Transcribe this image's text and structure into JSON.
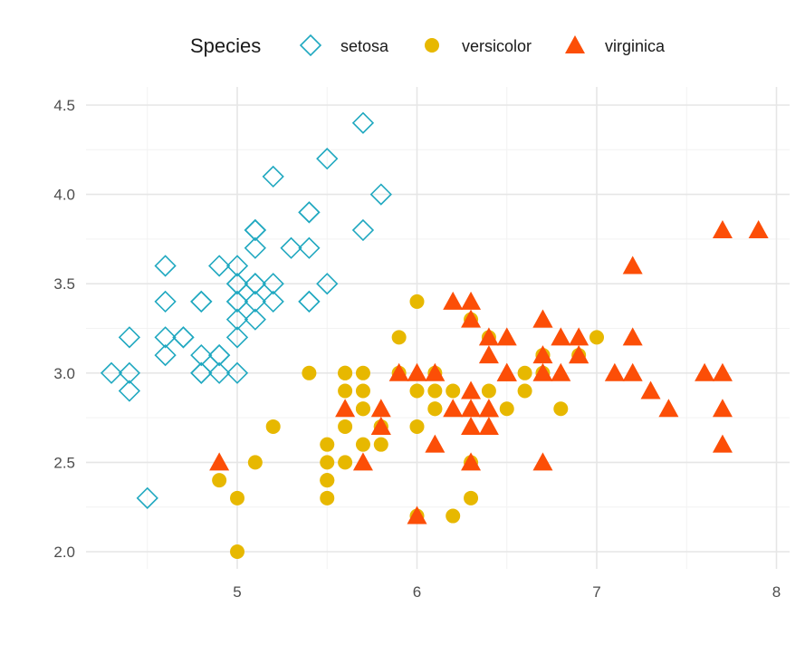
{
  "chart_data": {
    "type": "scatter",
    "title": "",
    "xlabel": "",
    "ylabel": "",
    "xlim": [
      4.3,
      8.0
    ],
    "ylim": [
      2.0,
      4.5
    ],
    "x_ticks": [
      5,
      6,
      7,
      8
    ],
    "y_ticks": [
      2.0,
      2.5,
      3.0,
      3.5,
      4.0,
      4.5
    ],
    "x_tick_labels": [
      "5",
      "6",
      "7",
      "8"
    ],
    "y_tick_labels": [
      "2.0",
      "2.5",
      "3.0",
      "3.5",
      "4.0",
      "4.5"
    ],
    "grid": true,
    "legend": {
      "title": "Species",
      "position": "top",
      "entries": [
        "setosa",
        "versicolor",
        "virginica"
      ]
    },
    "series": [
      {
        "name": "setosa",
        "marker": "diamond-open",
        "color": "#1FA8C0",
        "x": [
          5.1,
          4.9,
          4.7,
          4.6,
          5.0,
          5.4,
          4.6,
          5.0,
          4.4,
          4.9,
          5.4,
          4.8,
          4.8,
          4.3,
          5.8,
          5.7,
          5.4,
          5.1,
          5.7,
          5.1,
          5.4,
          5.1,
          4.6,
          5.1,
          4.8,
          5.0,
          5.0,
          5.2,
          5.2,
          4.7,
          4.8,
          5.4,
          5.2,
          5.5,
          4.9,
          5.0,
          5.5,
          4.9,
          4.4,
          5.1,
          5.0,
          4.5,
          4.4,
          5.0,
          5.1,
          4.8,
          5.1,
          4.6,
          5.3,
          5.0
        ],
        "y": [
          3.5,
          3.0,
          3.2,
          3.1,
          3.6,
          3.9,
          3.4,
          3.4,
          2.9,
          3.1,
          3.7,
          3.4,
          3.0,
          3.0,
          4.0,
          4.4,
          3.9,
          3.5,
          3.8,
          3.8,
          3.4,
          3.7,
          3.6,
          3.3,
          3.4,
          3.0,
          3.4,
          3.5,
          3.4,
          3.2,
          3.1,
          3.4,
          4.1,
          4.2,
          3.1,
          3.2,
          3.5,
          3.6,
          3.0,
          3.4,
          3.5,
          2.3,
          3.2,
          3.5,
          3.8,
          3.0,
          3.8,
          3.2,
          3.7,
          3.3
        ]
      },
      {
        "name": "versicolor",
        "marker": "circle",
        "color": "#E7B800",
        "x": [
          7.0,
          6.4,
          6.9,
          5.5,
          6.5,
          5.7,
          6.3,
          4.9,
          6.6,
          5.2,
          5.0,
          5.9,
          6.0,
          6.1,
          5.6,
          6.7,
          5.6,
          5.8,
          6.2,
          5.6,
          5.9,
          6.1,
          6.3,
          6.1,
          6.4,
          6.6,
          6.8,
          6.7,
          6.0,
          5.7,
          5.5,
          5.5,
          5.8,
          6.0,
          5.4,
          6.0,
          6.7,
          6.3,
          5.6,
          5.5,
          5.5,
          6.1,
          5.8,
          5.0,
          5.6,
          5.7,
          5.7,
          6.2,
          5.1,
          5.7
        ],
        "y": [
          3.2,
          3.2,
          3.1,
          2.3,
          2.8,
          2.8,
          3.3,
          2.4,
          2.9,
          2.7,
          2.0,
          3.0,
          2.2,
          2.9,
          2.9,
          3.1,
          3.0,
          2.7,
          2.2,
          2.5,
          3.2,
          2.8,
          2.5,
          2.8,
          2.9,
          3.0,
          2.8,
          3.0,
          2.9,
          2.6,
          2.4,
          2.4,
          2.7,
          2.7,
          3.0,
          3.4,
          3.1,
          2.3,
          3.0,
          2.5,
          2.6,
          3.0,
          2.6,
          2.3,
          2.7,
          3.0,
          2.9,
          2.9,
          2.5,
          2.8
        ]
      },
      {
        "name": "virginica",
        "marker": "triangle",
        "color": "#FC4E07",
        "x": [
          6.3,
          5.8,
          7.1,
          6.3,
          6.5,
          7.6,
          4.9,
          7.3,
          6.7,
          7.2,
          6.5,
          6.4,
          6.8,
          5.7,
          5.8,
          6.4,
          6.5,
          7.7,
          7.7,
          6.0,
          6.9,
          5.6,
          7.7,
          6.3,
          6.7,
          7.2,
          6.2,
          6.1,
          6.4,
          7.2,
          7.4,
          7.9,
          6.4,
          6.3,
          6.1,
          7.7,
          6.3,
          6.4,
          6.0,
          6.9,
          6.7,
          6.9,
          5.8,
          6.8,
          6.7,
          6.7,
          6.3,
          6.5,
          6.2,
          5.9
        ],
        "y": [
          3.3,
          2.7,
          3.0,
          2.9,
          3.0,
          3.0,
          2.5,
          2.9,
          2.5,
          3.6,
          3.2,
          2.7,
          3.0,
          2.5,
          2.8,
          3.2,
          3.0,
          3.8,
          2.6,
          2.2,
          3.2,
          2.8,
          2.8,
          2.7,
          3.3,
          3.2,
          2.8,
          3.0,
          2.8,
          3.0,
          2.8,
          3.8,
          2.8,
          2.8,
          2.6,
          3.0,
          3.4,
          3.1,
          3.0,
          3.1,
          3.1,
          3.1,
          2.7,
          3.2,
          3.3,
          3.0,
          2.5,
          3.0,
          3.4,
          3.0
        ]
      }
    ]
  }
}
